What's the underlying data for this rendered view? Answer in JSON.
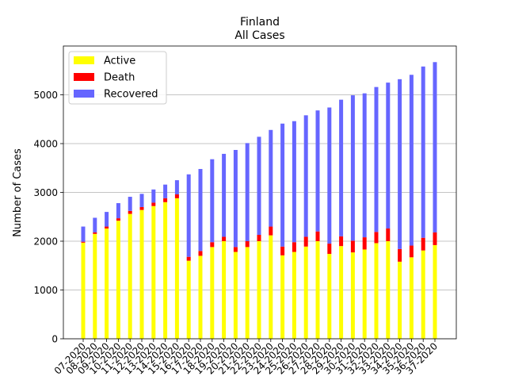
{
  "chart_data": {
    "type": "bar",
    "stacked": true,
    "title": "Finland",
    "subtitle": "All Cases",
    "xlabel": "",
    "ylabel": "Number of Cases",
    "ylim": [
      0,
      6000
    ],
    "yticks": [
      0,
      1000,
      2000,
      3000,
      4000,
      5000
    ],
    "grid": "horizontal",
    "legend_position": "top-left",
    "categories": [
      "07-2020",
      "08-2020",
      "09-2020",
      "10-2020",
      "11-2020",
      "12-2020",
      "13-2020",
      "14-2020",
      "15-2020",
      "16-2020",
      "17-2020",
      "18-2020",
      "19-2020",
      "20-2020",
      "21-2020",
      "22-2020",
      "23-2020",
      "24-2020",
      "25-2020",
      "26-2020",
      "27-2020",
      "28-2020",
      "29-2020",
      "30-2020",
      "31-2020",
      "32-2020",
      "33-2020",
      "34-2020",
      "35-2020",
      "36-2020",
      "37-2020"
    ],
    "series": [
      {
        "name": "Active",
        "color": "#ffff00",
        "values": [
          1970,
          2150,
          2260,
          2420,
          2560,
          2640,
          2720,
          2800,
          2880,
          1600,
          1700,
          1880,
          2000,
          1780,
          1880,
          2000,
          2120,
          1710,
          1780,
          1890,
          2000,
          1740,
          1900,
          1770,
          1830,
          1960,
          2000,
          1580,
          1670,
          1810,
          1920
        ]
      },
      {
        "name": "Death",
        "color": "#ff0000",
        "values": [
          20,
          30,
          40,
          50,
          60,
          60,
          70,
          80,
          80,
          80,
          100,
          100,
          90,
          100,
          120,
          130,
          180,
          180,
          200,
          200,
          200,
          210,
          200,
          240,
          250,
          230,
          260,
          260,
          240,
          260,
          260
        ]
      },
      {
        "name": "Recovered",
        "color": "#6666ff",
        "values": [
          310,
          300,
          300,
          310,
          290,
          270,
          270,
          280,
          290,
          1690,
          1680,
          1700,
          1700,
          1990,
          2010,
          2010,
          1980,
          2520,
          2480,
          2490,
          2480,
          2790,
          2800,
          2980,
          2950,
          2970,
          2990,
          3480,
          3500,
          3510,
          3490
        ]
      }
    ]
  }
}
